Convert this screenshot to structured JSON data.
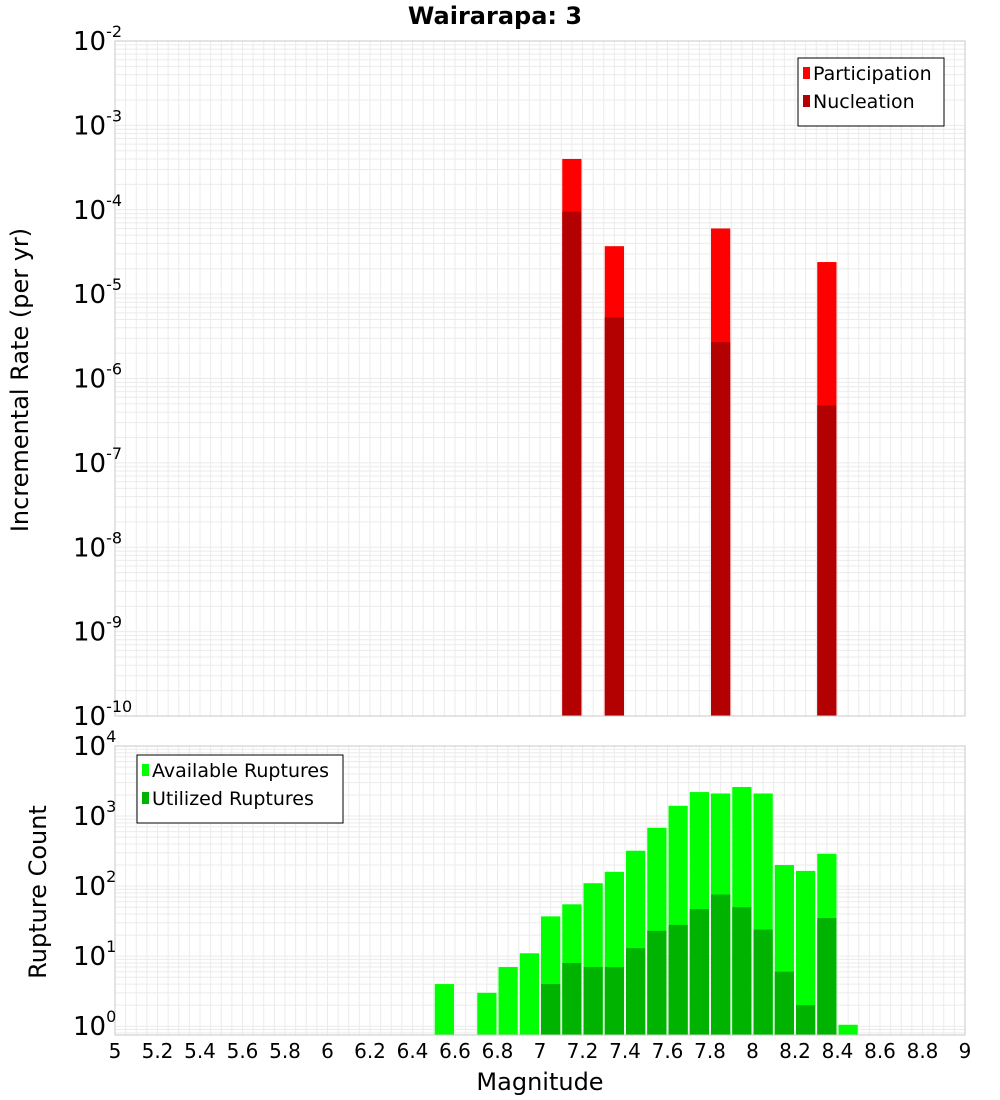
{
  "chart_data": [
    {
      "type": "bar",
      "title": "Wairarapa: 3",
      "ylabel": "Incremental Rate (per yr)",
      "yscale": "log",
      "ylim": [
        1e-10,
        0.01
      ],
      "xlim": [
        5,
        9
      ],
      "bin_width": 0.1,
      "grid": true,
      "legend_position": "top-right",
      "y_ticks": [
        {
          "base": "10",
          "exp": "-10",
          "value": 1e-10
        },
        {
          "base": "10",
          "exp": "-9",
          "value": 1e-09
        },
        {
          "base": "10",
          "exp": "-8",
          "value": 1e-08
        },
        {
          "base": "10",
          "exp": "-7",
          "value": 1e-07
        },
        {
          "base": "10",
          "exp": "-6",
          "value": 1e-06
        },
        {
          "base": "10",
          "exp": "-5",
          "value": 1e-05
        },
        {
          "base": "10",
          "exp": "-4",
          "value": 0.0001
        },
        {
          "base": "10",
          "exp": "-3",
          "value": 0.001
        },
        {
          "base": "10",
          "exp": "-2",
          "value": 0.01
        }
      ],
      "series": [
        {
          "name": "Participation",
          "color": "#ff0000",
          "x": [
            7.15,
            7.35,
            7.85,
            8.35
          ],
          "values": [
            0.0004,
            3.7e-05,
            6e-05,
            2.4e-05
          ]
        },
        {
          "name": "Nucleation",
          "color": "#b30000",
          "x": [
            7.15,
            7.35,
            7.85,
            8.35
          ],
          "values": [
            9.5e-05,
            5.3e-06,
            2.7e-06,
            4.8e-07
          ]
        }
      ]
    },
    {
      "type": "bar",
      "title": "",
      "xlabel": "Magnitude",
      "ylabel": "Rupture Count",
      "yscale": "log",
      "ylim": [
        0.75,
        10000
      ],
      "xlim": [
        5,
        9
      ],
      "bin_width": 0.1,
      "grid": true,
      "legend_position": "top-left",
      "x_ticks": [
        "5",
        "5.2",
        "5.4",
        "5.6",
        "5.8",
        "6",
        "6.2",
        "6.4",
        "6.6",
        "6.8",
        "7",
        "7.2",
        "7.4",
        "7.6",
        "7.8",
        "8",
        "8.2",
        "8.4",
        "8.6",
        "8.8",
        "9"
      ],
      "y_ticks": [
        {
          "base": "10",
          "exp": "0",
          "value": 1
        },
        {
          "base": "10",
          "exp": "1",
          "value": 10
        },
        {
          "base": "10",
          "exp": "2",
          "value": 100
        },
        {
          "base": "10",
          "exp": "3",
          "value": 1000
        },
        {
          "base": "10",
          "exp": "4",
          "value": 10000
        }
      ],
      "series": [
        {
          "name": "Available Ruptures",
          "color": "#00ff00",
          "x": [
            6.55,
            6.75,
            6.85,
            6.95,
            7.05,
            7.15,
            7.25,
            7.35,
            7.45,
            7.55,
            7.65,
            7.75,
            7.85,
            7.95,
            8.05,
            8.15,
            8.25,
            8.35,
            8.45
          ],
          "values": [
            4,
            3,
            7,
            11,
            37,
            55,
            110,
            160,
            320,
            680,
            1400,
            2200,
            2100,
            2600,
            2100,
            200,
            165,
            290,
            1.05
          ]
        },
        {
          "name": "Utilized Ruptures",
          "color": "#00b300",
          "x": [
            7.05,
            7.15,
            7.25,
            7.35,
            7.45,
            7.55,
            7.65,
            7.75,
            7.85,
            7.95,
            8.05,
            8.15,
            8.25,
            8.35
          ],
          "values": [
            4,
            8,
            7,
            7,
            13,
            23,
            28,
            47,
            76,
            50,
            24,
            6,
            2,
            35
          ]
        }
      ]
    }
  ]
}
